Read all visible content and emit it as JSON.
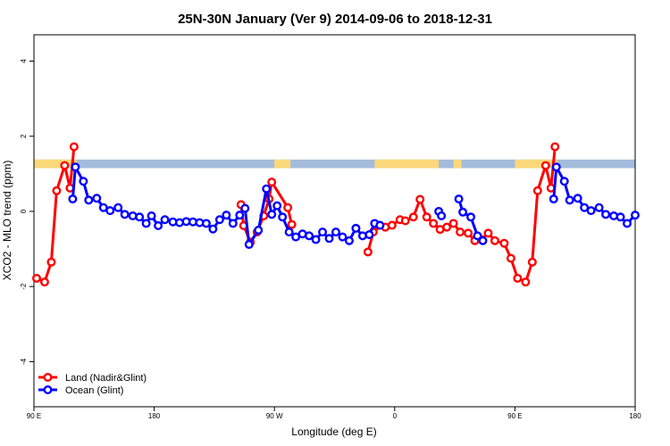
{
  "chart_data": {
    "type": "line",
    "title": "25N-30N January (Ver 9)   2014-09-06 to 2018-12-31",
    "xlabel": "Longitude (deg E)",
    "ylabel": "XCO2 - MLO trend (ppm)",
    "xlim": [
      90,
      540
    ],
    "ylim": [
      -5.2,
      4.7
    ],
    "x_ticks": [
      {
        "value": 90,
        "label": "90 E"
      },
      {
        "value": 180,
        "label": "180"
      },
      {
        "value": 270,
        "label": "90 W"
      },
      {
        "value": 360,
        "label": "0"
      },
      {
        "value": 450,
        "label": "90 E"
      },
      {
        "value": 540,
        "label": "180"
      }
    ],
    "y_ticks": [
      {
        "value": -4,
        "label": "-4"
      },
      {
        "value": -2,
        "label": "-2"
      },
      {
        "value": 0,
        "label": "0"
      },
      {
        "value": 2,
        "label": "2"
      },
      {
        "value": 4,
        "label": "4"
      }
    ],
    "legend_position": "bottom-left",
    "series": [
      {
        "name": "Land (Nadir&Glint)",
        "color": "#ff0000",
        "segments": [
          [
            [
              92,
              -1.78
            ],
            [
              98,
              -1.88
            ],
            [
              103,
              -1.35
            ],
            [
              107,
              0.55
            ],
            [
              113,
              1.22
            ],
            [
              117,
              0.62
            ],
            [
              120,
              1.72
            ]
          ],
          [
            [
              245,
              0.18
            ],
            [
              247,
              -0.38
            ],
            [
              252,
              -0.82
            ],
            [
              257,
              -0.55
            ],
            [
              262,
              -0.12
            ],
            [
              266,
              0.33
            ],
            [
              268,
              0.78
            ],
            [
              280,
              0.1
            ],
            [
              283,
              -0.35
            ]
          ],
          [
            [
              340,
              -1.08
            ],
            [
              344,
              -0.55
            ],
            [
              347,
              -0.38
            ],
            [
              353,
              -0.42
            ],
            [
              358,
              -0.37
            ],
            [
              364,
              -0.22
            ],
            [
              368,
              -0.25
            ],
            [
              374,
              -0.15
            ],
            [
              379,
              0.32
            ],
            [
              384,
              -0.15
            ],
            [
              389,
              -0.32
            ],
            [
              394,
              -0.48
            ],
            [
              399,
              -0.42
            ],
            [
              404,
              -0.32
            ],
            [
              409,
              -0.55
            ],
            [
              415,
              -0.58
            ],
            [
              420,
              -0.78
            ],
            [
              425,
              -0.75
            ],
            [
              430,
              -0.58
            ],
            [
              435,
              -0.78
            ],
            [
              442,
              -0.85
            ],
            [
              447,
              -1.25
            ],
            [
              452,
              -1.78
            ],
            [
              458,
              -1.88
            ],
            [
              463,
              -1.35
            ],
            [
              467,
              0.55
            ],
            [
              473,
              1.22
            ],
            [
              477,
              0.62
            ],
            [
              480,
              1.72
            ]
          ]
        ]
      },
      {
        "name": "Ocean (Glint)",
        "color": "#0000ff",
        "segments": [
          [
            [
              119,
              0.33
            ],
            [
              121,
              1.18
            ],
            [
              127,
              0.8
            ],
            [
              131,
              0.3
            ],
            [
              137,
              0.35
            ],
            [
              142,
              0.1
            ],
            [
              147,
              0.02
            ],
            [
              153,
              0.1
            ],
            [
              158,
              -0.08
            ],
            [
              164,
              -0.12
            ],
            [
              169,
              -0.15
            ],
            [
              174,
              -0.32
            ],
            [
              178,
              -0.12
            ],
            [
              183,
              -0.38
            ],
            [
              188,
              -0.22
            ],
            [
              194,
              -0.28
            ],
            [
              199,
              -0.3
            ],
            [
              204,
              -0.27
            ],
            [
              209,
              -0.28
            ],
            [
              214,
              -0.3
            ],
            [
              219,
              -0.32
            ],
            [
              224,
              -0.47
            ],
            [
              229,
              -0.22
            ],
            [
              234,
              -0.1
            ],
            [
              239,
              -0.32
            ],
            [
              244,
              -0.1
            ],
            [
              248,
              0.08
            ],
            [
              251,
              -0.88
            ],
            [
              258,
              -0.5
            ],
            [
              264,
              0.6
            ],
            [
              268,
              -0.08
            ],
            [
              272,
              0.15
            ],
            [
              276,
              -0.15
            ],
            [
              281,
              -0.55
            ],
            [
              286,
              -0.68
            ],
            [
              291,
              -0.6
            ],
            [
              296,
              -0.65
            ],
            [
              301,
              -0.75
            ],
            [
              306,
              -0.55
            ],
            [
              311,
              -0.72
            ],
            [
              316,
              -0.55
            ],
            [
              321,
              -0.68
            ],
            [
              326,
              -0.78
            ],
            [
              331,
              -0.45
            ],
            [
              336,
              -0.65
            ],
            [
              341,
              -0.62
            ],
            [
              345,
              -0.32
            ],
            [
              349,
              -0.37
            ]
          ],
          [
            [
              393,
              0.0
            ],
            [
              395,
              -0.12
            ]
          ],
          [
            [
              408,
              0.33
            ],
            [
              411,
              -0.02
            ],
            [
              417,
              -0.15
            ],
            [
              422,
              -0.65
            ],
            [
              426,
              -0.78
            ]
          ],
          [
            [
              479,
              0.33
            ],
            [
              481,
              1.18
            ],
            [
              487,
              0.8
            ],
            [
              491,
              0.3
            ],
            [
              497,
              0.35
            ],
            [
              502,
              0.1
            ],
            [
              507,
              0.02
            ],
            [
              513,
              0.1
            ],
            [
              518,
              -0.08
            ],
            [
              524,
              -0.12
            ],
            [
              529,
              -0.15
            ],
            [
              534,
              -0.32
            ],
            [
              540,
              -0.1
            ]
          ]
        ]
      }
    ],
    "land_mask_band": {
      "y_range": [
        1.15,
        1.38
      ],
      "ocean_color": "#a3bcdc",
      "land_color": "#fbd87a",
      "land_x_ranges": [
        [
          90,
          122
        ],
        [
          270,
          282
        ],
        [
          278,
          280
        ],
        [
          345,
          393
        ],
        [
          404,
          410
        ],
        [
          450,
          482
        ]
      ]
    }
  }
}
